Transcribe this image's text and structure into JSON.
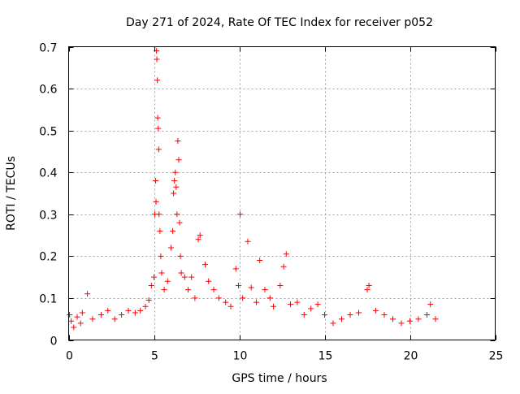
{
  "chart_data": {
    "type": "scatter",
    "title": "Day 271 of 2024, Rate Of TEC Index for receiver p052",
    "xlabel": "GPS time / hours",
    "ylabel": "ROTI / TECUs",
    "xlim": [
      0,
      25
    ],
    "ylim": [
      0,
      0.7
    ],
    "x_ticks": [
      0,
      5,
      10,
      15,
      20,
      25
    ],
    "y_ticks": [
      0,
      0.1,
      0.2,
      0.3,
      0.4,
      0.5,
      0.6,
      0.7
    ],
    "x_tick_labels": [
      "0",
      "5",
      "10",
      "15",
      "20",
      "25"
    ],
    "y_tick_labels": [
      "0",
      "0.1",
      "0.2",
      "0.3",
      "0.4",
      "0.5",
      "0.6",
      "0.7"
    ],
    "grid": true,
    "marker": "+",
    "color": "#ff0000",
    "series": [
      {
        "name": "p052 ROTI",
        "points": [
          [
            0.05,
            0.06
          ],
          [
            0.15,
            0.045
          ],
          [
            0.3,
            0.03
          ],
          [
            0.5,
            0.055
          ],
          [
            0.7,
            0.04
          ],
          [
            0.8,
            0.065
          ],
          [
            1.1,
            0.11
          ],
          [
            1.4,
            0.05
          ],
          [
            1.9,
            0.06
          ],
          [
            2.3,
            0.07
          ],
          [
            2.7,
            0.05
          ],
          [
            3.1,
            0.06
          ],
          [
            3.5,
            0.07
          ],
          [
            3.9,
            0.065
          ],
          [
            4.2,
            0.07
          ],
          [
            4.5,
            0.08
          ],
          [
            4.7,
            0.095
          ],
          [
            4.85,
            0.13
          ],
          [
            5.0,
            0.15
          ],
          [
            5.05,
            0.3
          ],
          [
            5.1,
            0.38
          ],
          [
            5.12,
            0.33
          ],
          [
            5.15,
            0.69
          ],
          [
            5.17,
            0.67
          ],
          [
            5.2,
            0.62
          ],
          [
            5.22,
            0.53
          ],
          [
            5.25,
            0.505
          ],
          [
            5.28,
            0.455
          ],
          [
            5.3,
            0.3
          ],
          [
            5.35,
            0.26
          ],
          [
            5.4,
            0.2
          ],
          [
            5.45,
            0.16
          ],
          [
            5.6,
            0.12
          ],
          [
            5.8,
            0.14
          ],
          [
            6.0,
            0.22
          ],
          [
            6.1,
            0.26
          ],
          [
            6.15,
            0.35
          ],
          [
            6.2,
            0.38
          ],
          [
            6.25,
            0.4
          ],
          [
            6.3,
            0.365
          ],
          [
            6.35,
            0.3
          ],
          [
            6.4,
            0.475
          ],
          [
            6.45,
            0.43
          ],
          [
            6.5,
            0.28
          ],
          [
            6.55,
            0.2
          ],
          [
            6.6,
            0.16
          ],
          [
            6.8,
            0.15
          ],
          [
            7.0,
            0.12
          ],
          [
            7.2,
            0.15
          ],
          [
            7.4,
            0.1
          ],
          [
            7.6,
            0.24
          ],
          [
            7.7,
            0.25
          ],
          [
            8.0,
            0.18
          ],
          [
            8.2,
            0.14
          ],
          [
            8.5,
            0.12
          ],
          [
            8.8,
            0.1
          ],
          [
            9.2,
            0.09
          ],
          [
            9.5,
            0.08
          ],
          [
            9.8,
            0.17
          ],
          [
            9.95,
            0.13
          ],
          [
            10.05,
            0.3
          ],
          [
            10.2,
            0.1
          ],
          [
            10.5,
            0.235
          ],
          [
            10.7,
            0.125
          ],
          [
            11.0,
            0.09
          ],
          [
            11.2,
            0.19
          ],
          [
            11.5,
            0.12
          ],
          [
            11.8,
            0.1
          ],
          [
            12.0,
            0.08
          ],
          [
            12.4,
            0.13
          ],
          [
            12.6,
            0.175
          ],
          [
            12.75,
            0.205
          ],
          [
            13.0,
            0.085
          ],
          [
            13.4,
            0.09
          ],
          [
            13.8,
            0.06
          ],
          [
            14.2,
            0.075
          ],
          [
            14.6,
            0.085
          ],
          [
            15.0,
            0.06
          ],
          [
            15.5,
            0.04
          ],
          [
            16.0,
            0.05
          ],
          [
            16.5,
            0.06
          ],
          [
            17.0,
            0.065
          ],
          [
            17.5,
            0.12
          ],
          [
            17.6,
            0.13
          ],
          [
            18.0,
            0.07
          ],
          [
            18.5,
            0.06
          ],
          [
            19.0,
            0.05
          ],
          [
            19.5,
            0.04
          ],
          [
            20.0,
            0.045
          ],
          [
            20.5,
            0.05
          ],
          [
            21.0,
            0.06
          ],
          [
            21.2,
            0.085
          ],
          [
            21.5,
            0.05
          ]
        ]
      }
    ]
  }
}
